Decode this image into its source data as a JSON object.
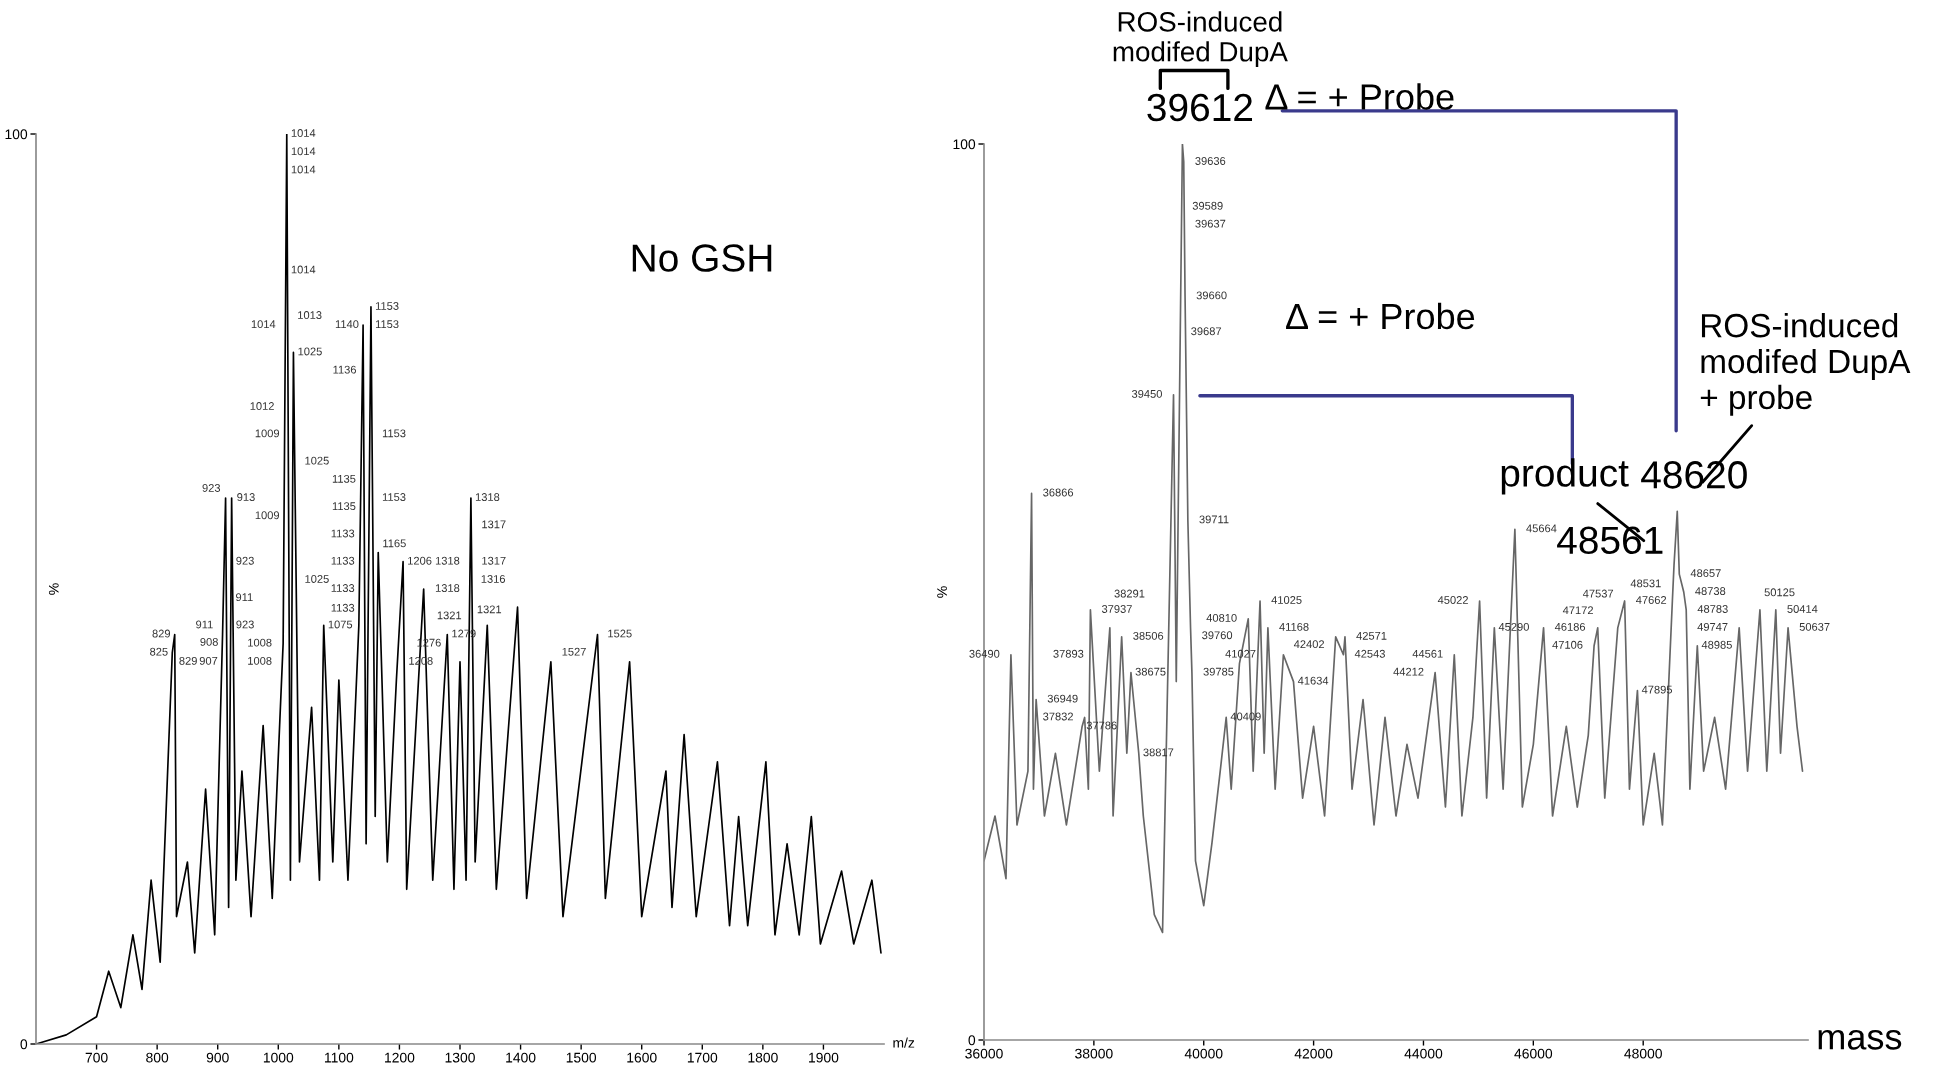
{
  "chart_data": [
    {
      "type": "line",
      "title": "No GSH",
      "xlabel": "m/z",
      "ylabel": "%",
      "xlim": [
        600,
        2000
      ],
      "xticks": [
        700,
        800,
        900,
        1000,
        1100,
        1200,
        1300,
        1400,
        1500,
        1600,
        1700,
        1800,
        1900
      ],
      "ylim": [
        0,
        100
      ],
      "yticks": [
        0,
        100
      ],
      "grid": false,
      "legend": false,
      "x": [
        600,
        650,
        700,
        720,
        740,
        760,
        775,
        790,
        805,
        825,
        829,
        832,
        850,
        862,
        880,
        895,
        908,
        913,
        918,
        923,
        930,
        940,
        955,
        975,
        990,
        1008,
        1014,
        1020,
        1025,
        1035,
        1055,
        1068,
        1075,
        1090,
        1100,
        1115,
        1133,
        1140,
        1145,
        1153,
        1160,
        1165,
        1180,
        1195,
        1206,
        1212,
        1240,
        1255,
        1279,
        1290,
        1300,
        1310,
        1318,
        1325,
        1345,
        1360,
        1395,
        1410,
        1450,
        1470,
        1527,
        1540,
        1580,
        1600,
        1640,
        1650,
        1670,
        1690,
        1725,
        1745,
        1760,
        1775,
        1805,
        1820,
        1840,
        1860,
        1880,
        1895,
        1930,
        1950,
        1980,
        1995
      ],
      "series": [
        {
          "color": "#000000",
          "values": [
            0,
            1,
            3,
            8,
            4,
            12,
            6,
            18,
            9,
            43,
            45,
            14,
            20,
            10,
            28,
            12,
            45,
            60,
            15,
            60,
            18,
            30,
            14,
            35,
            16,
            44,
            100,
            18,
            76,
            20,
            37,
            18,
            46,
            20,
            40,
            18,
            46,
            79,
            22,
            81,
            25,
            54,
            20,
            40,
            53,
            17,
            50,
            18,
            45,
            17,
            42,
            18,
            60,
            20,
            46,
            17,
            48,
            16,
            42,
            14,
            45,
            16,
            42,
            14,
            30,
            15,
            34,
            14,
            31,
            13,
            25,
            13,
            31,
            12,
            22,
            12,
            25,
            11,
            19,
            11,
            18,
            10
          ]
        }
      ],
      "annotations": [
        {
          "text": "1014",
          "x": 1014,
          "y": 100
        },
        {
          "text": "1014",
          "x": 1014,
          "y": 98
        },
        {
          "text": "1014",
          "x": 1014,
          "y": 96
        },
        {
          "text": "1014",
          "x": 1014,
          "y": 85
        },
        {
          "text": "1013",
          "x": 1013,
          "y": 80
        },
        {
          "text": "1014",
          "x": 1014,
          "y": 79
        },
        {
          "text": "1025",
          "x": 1025,
          "y": 76
        },
        {
          "text": "1012",
          "x": 1012,
          "y": 70
        },
        {
          "text": "1009",
          "x": 1009,
          "y": 67
        },
        {
          "text": "1025",
          "x": 1025,
          "y": 64
        },
        {
          "text": "913",
          "x": 913,
          "y": 60
        },
        {
          "text": "923",
          "x": 923,
          "y": 61
        },
        {
          "text": "1009",
          "x": 1009,
          "y": 58
        },
        {
          "text": "923",
          "x": 923,
          "y": 53
        },
        {
          "text": "1025",
          "x": 1025,
          "y": 51
        },
        {
          "text": "911",
          "x": 911,
          "y": 49
        },
        {
          "text": "911",
          "x": 911,
          "y": 46
        },
        {
          "text": "923",
          "x": 923,
          "y": 46
        },
        {
          "text": "908",
          "x": 908,
          "y": 45
        },
        {
          "text": "829",
          "x": 829,
          "y": 45
        },
        {
          "text": "825",
          "x": 825,
          "y": 43
        },
        {
          "text": "829",
          "x": 829,
          "y": 42
        },
        {
          "text": "907",
          "x": 907,
          "y": 42
        },
        {
          "text": "1075",
          "x": 1075,
          "y": 46
        },
        {
          "text": "1008",
          "x": 1008,
          "y": 44
        },
        {
          "text": "1008",
          "x": 1008,
          "y": 42
        },
        {
          "text": "1153",
          "x": 1153,
          "y": 81
        },
        {
          "text": "1140",
          "x": 1140,
          "y": 79
        },
        {
          "text": "1153",
          "x": 1153,
          "y": 79
        },
        {
          "text": "1136",
          "x": 1136,
          "y": 74
        },
        {
          "text": "1153",
          "x": 1153,
          "y": 67
        },
        {
          "text": "1135",
          "x": 1135,
          "y": 62
        },
        {
          "text": "1153",
          "x": 1153,
          "y": 60
        },
        {
          "text": "1135",
          "x": 1135,
          "y": 59
        },
        {
          "text": "1133",
          "x": 1133,
          "y": 56
        },
        {
          "text": "1133",
          "x": 1133,
          "y": 53
        },
        {
          "text": "1165",
          "x": 1165,
          "y": 54
        },
        {
          "text": "1133",
          "x": 1133,
          "y": 50
        },
        {
          "text": "1133",
          "x": 1133,
          "y": 46
        },
        {
          "text": "1206",
          "x": 1206,
          "y": 53
        },
        {
          "text": "1318",
          "x": 1318,
          "y": 60
        },
        {
          "text": "1317",
          "x": 1317,
          "y": 57
        },
        {
          "text": "1317",
          "x": 1317,
          "y": 53
        },
        {
          "text": "1318",
          "x": 1318,
          "y": 53
        },
        {
          "text": "1316",
          "x": 1316,
          "y": 51
        },
        {
          "text": "1318",
          "x": 1318,
          "y": 50
        },
        {
          "text": "1321",
          "x": 1321,
          "y": 47
        },
        {
          "text": "1279",
          "x": 1279,
          "y": 45
        },
        {
          "text": "1276",
          "x": 1276,
          "y": 44
        },
        {
          "text": "1321",
          "x": 1321,
          "y": 44
        },
        {
          "text": "1208",
          "x": 1208,
          "y": 42
        },
        {
          "text": "1525",
          "x": 1525,
          "y": 45
        },
        {
          "text": "1527",
          "x": 1527,
          "y": 43
        }
      ]
    },
    {
      "type": "line",
      "xlabel": "mass",
      "ylabel": "%",
      "xlim": [
        36000,
        51000
      ],
      "xticks": [
        36000,
        38000,
        40000,
        42000,
        44000,
        46000,
        48000
      ],
      "ylim": [
        0,
        100
      ],
      "yticks": [
        0,
        100
      ],
      "grid": false,
      "legend": false,
      "x": [
        36000,
        36200,
        36400,
        36490,
        36600,
        36800,
        36866,
        36900,
        36949,
        37100,
        37300,
        37500,
        37786,
        37832,
        37900,
        37937,
        38100,
        38291,
        38350,
        38506,
        38600,
        38675,
        38817,
        38900,
        39100,
        39250,
        39450,
        39500,
        39612,
        39636,
        39660,
        39711,
        39760,
        39785,
        39850,
        40000,
        40150,
        40300,
        40409,
        40500,
        40650,
        40810,
        40900,
        41025,
        41100,
        41168,
        41300,
        41450,
        41634,
        41800,
        42000,
        42200,
        42402,
        42543,
        42571,
        42700,
        42900,
        43100,
        43300,
        43500,
        43700,
        43900,
        44212,
        44400,
        44561,
        44700,
        44900,
        45022,
        45150,
        45290,
        45450,
        45664,
        45800,
        46000,
        46186,
        46350,
        46600,
        46800,
        47000,
        47106,
        47172,
        47300,
        47537,
        47662,
        47750,
        47895,
        48000,
        48200,
        48350,
        48531,
        48561,
        48620,
        48657,
        48738,
        48783,
        48850,
        48985,
        49100,
        49300,
        49500,
        49747,
        49900,
        50125,
        50250,
        50414,
        50500,
        50637,
        50800,
        50900
      ],
      "series": [
        {
          "color": "#666666",
          "values": [
            20,
            25,
            18,
            43,
            24,
            30,
            61,
            28,
            38,
            25,
            32,
            24,
            35,
            36,
            28,
            48,
            30,
            46,
            25,
            45,
            32,
            41,
            32,
            25,
            14,
            12,
            72,
            40,
            100,
            98,
            83,
            58,
            46,
            41,
            20,
            15,
            22,
            30,
            36,
            28,
            42,
            47,
            30,
            49,
            32,
            46,
            28,
            43,
            40,
            27,
            35,
            25,
            45,
            43,
            45,
            28,
            38,
            24,
            36,
            25,
            33,
            27,
            41,
            26,
            43,
            25,
            36,
            49,
            27,
            46,
            28,
            57,
            26,
            33,
            46,
            25,
            35,
            26,
            34,
            44,
            46,
            27,
            46,
            49,
            28,
            39,
            24,
            32,
            24,
            49,
            53,
            59,
            52,
            50,
            48,
            28,
            44,
            30,
            36,
            28,
            46,
            30,
            48,
            30,
            48,
            32,
            46,
            35,
            30
          ]
        }
      ],
      "annotations": [
        {
          "text": "39612",
          "x": 39612,
          "y": 100
        },
        {
          "text": "48561",
          "x": 48561,
          "y": 53
        },
        {
          "text": "48620",
          "x": 48620,
          "y": 59
        },
        "ROS-induced\nmodifed DupA",
        "Δ = + Probe",
        "Δ = + Probe",
        {
          "text": "product",
          "x": 48561,
          "y": 53
        },
        {
          "text": "ROS-induced\nmodifed DupA\n+ probe",
          "x": 48620,
          "y": 59
        },
        {
          "text": "39636",
          "x": 39636,
          "y": 98
        },
        {
          "text": "39589",
          "x": 39589,
          "y": 93
        },
        {
          "text": "39637",
          "x": 39637,
          "y": 91
        },
        {
          "text": "39660",
          "x": 39660,
          "y": 83
        },
        {
          "text": "39687",
          "x": 39687,
          "y": 79
        },
        {
          "text": "39450",
          "x": 39450,
          "y": 72
        },
        {
          "text": "36866",
          "x": 36866,
          "y": 61
        },
        {
          "text": "39711",
          "x": 39711,
          "y": 58
        },
        {
          "text": "37937",
          "x": 37937,
          "y": 48
        },
        {
          "text": "38291",
          "x": 38291,
          "y": 46
        },
        {
          "text": "38506",
          "x": 38506,
          "y": 45
        },
        {
          "text": "37893",
          "x": 37893,
          "y": 43
        },
        {
          "text": "36490",
          "x": 36490,
          "y": 43
        },
        {
          "text": "38675",
          "x": 38675,
          "y": 41
        },
        {
          "text": "36949",
          "x": 36949,
          "y": 38
        },
        {
          "text": "37832",
          "x": 37832,
          "y": 36
        },
        {
          "text": "37786",
          "x": 37786,
          "y": 35
        },
        {
          "text": "38817",
          "x": 38817,
          "y": 32
        },
        {
          "text": "41025",
          "x": 41025,
          "y": 49
        },
        {
          "text": "40810",
          "x": 40810,
          "y": 47
        },
        {
          "text": "41168",
          "x": 41168,
          "y": 46
        },
        {
          "text": "39760",
          "x": 39760,
          "y": 46
        },
        {
          "text": "42402",
          "x": 42402,
          "y": 45
        },
        {
          "text": "42571",
          "x": 42571,
          "y": 45
        },
        {
          "text": "41027",
          "x": 41027,
          "y": 43
        },
        {
          "text": "42543",
          "x": 42543,
          "y": 43
        },
        {
          "text": "44561",
          "x": 44561,
          "y": 43
        },
        {
          "text": "39785",
          "x": 39785,
          "y": 41
        },
        {
          "text": "41634",
          "x": 41634,
          "y": 40
        },
        {
          "text": "44212",
          "x": 44212,
          "y": 41
        },
        {
          "text": "40409",
          "x": 40409,
          "y": 36
        },
        {
          "text": "45664",
          "x": 45664,
          "y": 57
        },
        {
          "text": "45022",
          "x": 45022,
          "y": 49
        },
        {
          "text": "45290",
          "x": 45290,
          "y": 46
        },
        {
          "text": "46186",
          "x": 46186,
          "y": 46
        },
        {
          "text": "47172",
          "x": 47172,
          "y": 46
        },
        {
          "text": "47537",
          "x": 47537,
          "y": 46
        },
        {
          "text": "47106",
          "x": 47106,
          "y": 44
        },
        {
          "text": "47662",
          "x": 47662,
          "y": 49
        },
        {
          "text": "48531",
          "x": 48531,
          "y": 49
        },
        {
          "text": "47895",
          "x": 47895,
          "y": 39
        },
        {
          "text": "48657",
          "x": 48657,
          "y": 52
        },
        {
          "text": "48738",
          "x": 48738,
          "y": 50
        },
        {
          "text": "48783",
          "x": 48783,
          "y": 48
        },
        {
          "text": "49747",
          "x": 49747,
          "y": 46
        },
        {
          "text": "48985",
          "x": 48985,
          "y": 44
        },
        {
          "text": "50125",
          "x": 50125,
          "y": 48
        },
        {
          "text": "50414",
          "x": 50414,
          "y": 48
        },
        {
          "text": "50637",
          "x": 50637,
          "y": 46
        }
      ]
    }
  ]
}
